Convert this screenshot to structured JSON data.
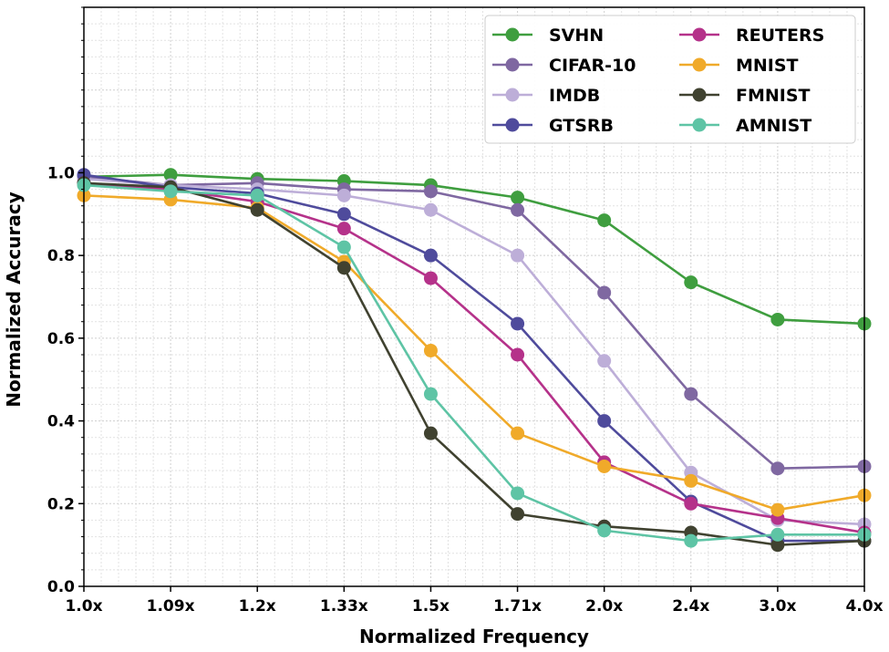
{
  "chart_data": {
    "type": "line",
    "title": "",
    "xlabel": "Normalized Frequency",
    "ylabel": "Normalized Accuracy",
    "categories": [
      "1.0x",
      "1.09x",
      "1.2x",
      "1.33x",
      "1.5x",
      "1.71x",
      "2.0x",
      "2.4x",
      "3.0x",
      "4.0x"
    ],
    "ylim": [
      0.0,
      1.4
    ],
    "yticks": [
      "0.0",
      "0.2",
      "0.4",
      "0.6",
      "0.8",
      "1.0"
    ],
    "grid": true,
    "legend_position": "top-right",
    "series": [
      {
        "name": "SVHN",
        "color": "#3f9e3f",
        "values": [
          0.99,
          0.995,
          0.985,
          0.98,
          0.97,
          0.94,
          0.885,
          0.735,
          0.645,
          0.635
        ]
      },
      {
        "name": "CIFAR-10",
        "color": "#7f68a1",
        "values": [
          0.99,
          0.97,
          0.975,
          0.96,
          0.955,
          0.91,
          0.71,
          0.465,
          0.285,
          0.29
        ]
      },
      {
        "name": "IMDB",
        "color": "#bdaed8",
        "values": [
          0.985,
          0.97,
          0.96,
          0.945,
          0.91,
          0.8,
          0.545,
          0.275,
          0.16,
          0.15
        ]
      },
      {
        "name": "GTSRB",
        "color": "#4f4b9c",
        "values": [
          0.995,
          0.965,
          0.95,
          0.9,
          0.8,
          0.635,
          0.4,
          0.205,
          0.11,
          0.11
        ]
      },
      {
        "name": "REUTERS",
        "color": "#b5328a",
        "values": [
          0.975,
          0.96,
          0.93,
          0.865,
          0.745,
          0.56,
          0.3,
          0.2,
          0.165,
          0.13
        ]
      },
      {
        "name": "MNIST",
        "color": "#f0aa2a",
        "values": [
          0.945,
          0.935,
          0.915,
          0.785,
          0.57,
          0.37,
          0.29,
          0.255,
          0.185,
          0.22
        ]
      },
      {
        "name": "FMNIST",
        "color": "#404230",
        "values": [
          0.975,
          0.965,
          0.91,
          0.77,
          0.37,
          0.175,
          0.145,
          0.13,
          0.1,
          0.11
        ]
      },
      {
        "name": "AMNIST",
        "color": "#5ec4a5",
        "values": [
          0.97,
          0.955,
          0.945,
          0.82,
          0.465,
          0.225,
          0.135,
          0.11,
          0.125,
          0.125
        ]
      }
    ]
  }
}
